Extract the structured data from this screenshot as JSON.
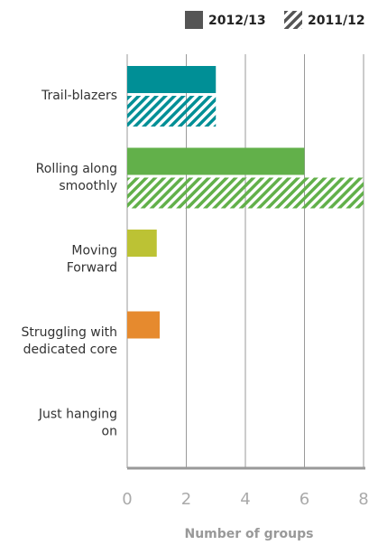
{
  "chart_data": {
    "type": "bar",
    "orientation": "horizontal",
    "categories": [
      [
        "Trail-blazers"
      ],
      [
        "Rolling along",
        "smoothly"
      ],
      [
        "Moving",
        "Forward"
      ],
      [
        "Struggling with",
        "dedicated core"
      ],
      [
        "Just hanging",
        "on"
      ]
    ],
    "colors": [
      "#008f96",
      "#62b04a",
      "#bcc234",
      "#e68a2e",
      "#999999"
    ],
    "series": [
      {
        "name": "2012/13",
        "color": "#555555",
        "pattern": "solid",
        "values": [
          3,
          6,
          1,
          1.1,
          null
        ]
      },
      {
        "name": "2011/12",
        "color": "#555555",
        "pattern": "hatched",
        "values": [
          3,
          8,
          null,
          null,
          null
        ]
      }
    ],
    "xlim": [
      0,
      8
    ],
    "xticks": [
      0,
      2,
      4,
      6,
      8
    ],
    "xlabel": "Number of groups",
    "grid": true,
    "legend": "top-right"
  }
}
